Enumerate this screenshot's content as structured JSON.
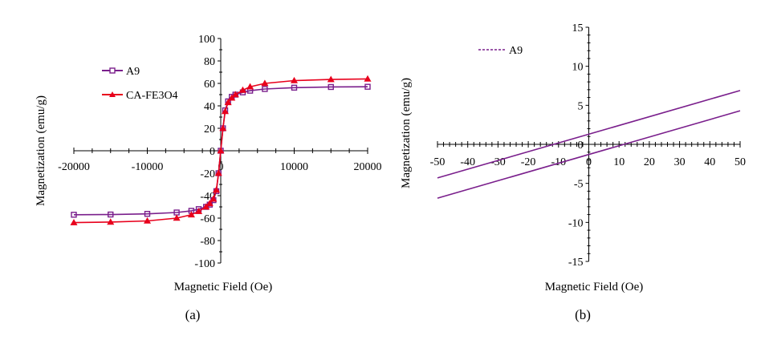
{
  "chart_data": [
    {
      "type": "line",
      "caption": "(a)",
      "xlabel": "Magnetic Field (Oe)",
      "ylabel": "Magnetization (emu/g)",
      "xlim": [
        -20000,
        20000
      ],
      "ylim": [
        -100,
        100
      ],
      "xticks": [
        -20000,
        -10000,
        0,
        10000,
        20000
      ],
      "yticks": [
        -100,
        -80,
        -60,
        -40,
        -20,
        0,
        20,
        40,
        60,
        80,
        100
      ],
      "legend_position": "upper-left",
      "series": [
        {
          "name": "A9",
          "color": "#7a1f8c",
          "marker": "square",
          "x": [
            -20000,
            -15000,
            -10000,
            -6000,
            -4000,
            -3000,
            -2000,
            -1500,
            -1000,
            -600,
            -300,
            0,
            300,
            600,
            1000,
            1500,
            2000,
            3000,
            4000,
            6000,
            10000,
            15000,
            20000
          ],
          "y": [
            -57,
            -56.8,
            -56.2,
            -55,
            -53.5,
            -52,
            -50,
            -48,
            -44,
            -36,
            -20,
            0,
            20,
            36,
            44,
            48,
            50,
            52,
            53.5,
            55,
            56.2,
            56.8,
            57
          ]
        },
        {
          "name": "CA-FE3O4",
          "color": "#e8001c",
          "marker": "triangle",
          "x": [
            -20000,
            -15000,
            -10000,
            -6000,
            -4000,
            -3000,
            -2000,
            -1500,
            -1000,
            -600,
            -300,
            0,
            300,
            600,
            1000,
            1500,
            2000,
            3000,
            4000,
            6000,
            10000,
            15000,
            20000
          ],
          "y": [
            -64,
            -63.5,
            -62.5,
            -60,
            -57,
            -54,
            -50,
            -47,
            -43,
            -35,
            -20,
            0,
            20,
            35,
            43,
            47,
            50,
            54,
            57,
            60,
            62.5,
            63.5,
            64
          ]
        }
      ]
    },
    {
      "type": "line",
      "caption": "(b)",
      "xlabel": "Magnetic Field (Oe)",
      "ylabel": "Magnetization (emu/g)",
      "xlim": [
        -50,
        50
      ],
      "ylim": [
        -15,
        15
      ],
      "xticks": [
        -50,
        -40,
        -30,
        -20,
        -10,
        0,
        10,
        20,
        30,
        40,
        50
      ],
      "yticks": [
        -15,
        -10,
        -5,
        0,
        5,
        10,
        15
      ],
      "legend_position": "upper-left",
      "series": [
        {
          "name": "A9",
          "color": "#7a1f8c",
          "x": [
            -50,
            50
          ],
          "y": [
            -4.3,
            6.9
          ]
        },
        {
          "name": "",
          "color": "#7a1f8c",
          "x": [
            -50,
            50
          ],
          "y": [
            -6.9,
            4.3
          ]
        }
      ]
    }
  ]
}
